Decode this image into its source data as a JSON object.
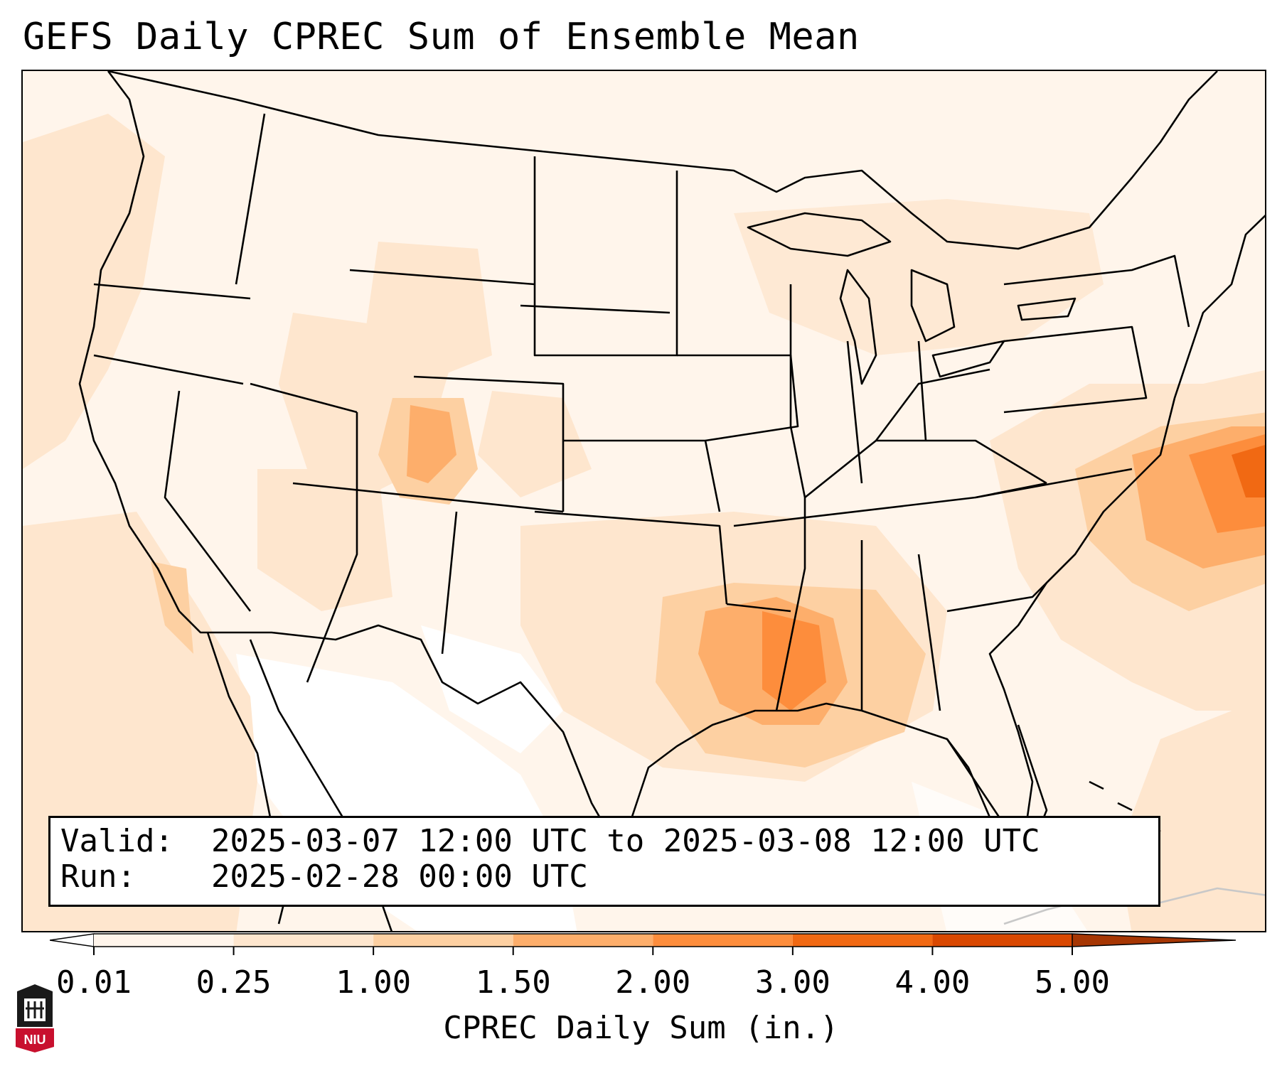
{
  "title": "GEFS Daily CPREC Sum of Ensemble Mean",
  "info": {
    "valid_label": "Valid:",
    "valid_value": "2025-03-07 12:00 UTC to 2025-03-08 12:00 UTC",
    "run_label": "Run:",
    "run_value": "2025-02-28 00:00 UTC"
  },
  "colorbar": {
    "label": "CPREC Daily Sum (in.)",
    "ticks": [
      "0.01",
      "0.25",
      "1.00",
      "1.50",
      "2.00",
      "3.00",
      "4.00",
      "5.00"
    ],
    "colors": [
      "#fff5eb",
      "#fee6ce",
      "#fdd0a2",
      "#fdae6b",
      "#fd8d3c",
      "#f16913",
      "#d94801"
    ],
    "under_color": "#ffffff",
    "over_color": "#a63603"
  },
  "map": {
    "projection": "Lambert Conformal, CONUS",
    "overlays": [
      "state-borders",
      "coastlines",
      "great-lakes"
    ],
    "heaviest_area": "Lower Mississippi Valley / Gulf Coast",
    "max_area": "Atlantic offshore of Mid-Atlantic"
  },
  "logo": {
    "text": "NIU",
    "color": "#c8102e"
  }
}
